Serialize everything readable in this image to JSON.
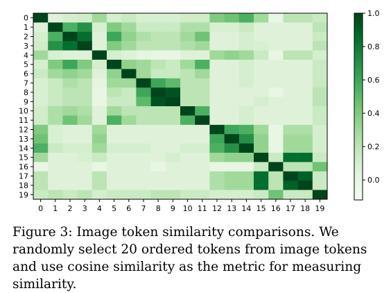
{
  "chart_data": {
    "type": "heatmap",
    "title": "",
    "xlabel": "",
    "ylabel": "",
    "x_ticks": [
      "0",
      "1",
      "2",
      "3",
      "4",
      "5",
      "6",
      "7",
      "8",
      "9",
      "10",
      "11",
      "12",
      "13",
      "14",
      "15",
      "16",
      "17",
      "18",
      "19"
    ],
    "y_ticks": [
      "0",
      "1",
      "2",
      "3",
      "4",
      "5",
      "6",
      "7",
      "8",
      "9",
      "10",
      "11",
      "12",
      "13",
      "14",
      "15",
      "16",
      "17",
      "18",
      "19"
    ],
    "colormap": "Greens",
    "colorbar": {
      "min": -0.12,
      "max": 1.0,
      "ticks": [
        0.0,
        0.2,
        0.4,
        0.6,
        0.8,
        1.0
      ],
      "tick_labels": [
        "0.0",
        "0.2",
        "0.4",
        "0.6",
        "0.8",
        "1.0"
      ]
    },
    "values": [
      [
        1.0,
        0.05,
        0.1,
        0.12,
        0.3,
        0.1,
        0.15,
        0.08,
        0.08,
        0.08,
        0.12,
        0.12,
        0.4,
        0.45,
        0.55,
        0.3,
        0.0,
        0.2,
        0.2,
        0.15
      ],
      [
        0.05,
        1.0,
        0.55,
        0.7,
        0.08,
        0.4,
        0.3,
        0.15,
        0.15,
        0.15,
        0.25,
        0.25,
        0.08,
        0.08,
        0.15,
        0.05,
        0.05,
        0.05,
        0.05,
        0.2
      ],
      [
        0.1,
        0.55,
        1.0,
        0.85,
        0.05,
        0.6,
        0.35,
        0.25,
        0.2,
        0.2,
        0.3,
        0.45,
        0.05,
        0.05,
        0.1,
        0.05,
        0.05,
        0.05,
        0.05,
        0.15
      ],
      [
        0.12,
        0.7,
        0.85,
        1.0,
        0.05,
        0.4,
        0.3,
        0.2,
        0.2,
        0.2,
        0.25,
        0.3,
        0.05,
        0.05,
        0.1,
        0.08,
        0.05,
        0.05,
        0.05,
        0.2
      ],
      [
        0.3,
        0.08,
        0.05,
        0.05,
        1.0,
        0.1,
        0.05,
        0.02,
        0.0,
        0.0,
        0.05,
        0.05,
        0.3,
        0.35,
        0.3,
        0.15,
        0.0,
        0.2,
        0.2,
        0.1
      ],
      [
        0.1,
        0.4,
        0.6,
        0.4,
        0.1,
        1.0,
        0.35,
        0.3,
        0.2,
        0.15,
        0.3,
        0.55,
        0.05,
        0.05,
        0.1,
        0.05,
        0.05,
        0.05,
        0.05,
        0.15
      ],
      [
        0.15,
        0.3,
        0.35,
        0.3,
        0.05,
        0.35,
        1.0,
        0.3,
        0.15,
        0.15,
        0.2,
        0.3,
        0.05,
        0.05,
        0.1,
        0.05,
        0.05,
        0.05,
        0.05,
        0.15
      ],
      [
        0.08,
        0.15,
        0.25,
        0.2,
        0.02,
        0.3,
        0.3,
        1.0,
        0.6,
        0.5,
        0.2,
        0.2,
        0.05,
        0.05,
        0.1,
        0.05,
        0.05,
        0.05,
        0.05,
        0.15
      ],
      [
        0.08,
        0.15,
        0.2,
        0.2,
        0.0,
        0.2,
        0.15,
        0.6,
        1.0,
        0.95,
        0.2,
        0.2,
        0.05,
        0.05,
        0.05,
        0.05,
        0.0,
        0.05,
        0.05,
        0.2
      ],
      [
        0.08,
        0.15,
        0.2,
        0.2,
        0.0,
        0.15,
        0.15,
        0.5,
        0.95,
        1.0,
        0.2,
        0.2,
        0.05,
        0.05,
        0.05,
        0.1,
        0.05,
        0.05,
        0.05,
        0.2
      ],
      [
        0.12,
        0.25,
        0.3,
        0.25,
        0.05,
        0.3,
        0.2,
        0.2,
        0.2,
        0.2,
        1.0,
        0.55,
        0.05,
        0.05,
        0.1,
        0.05,
        0.05,
        0.05,
        0.05,
        0.15
      ],
      [
        0.12,
        0.25,
        0.45,
        0.3,
        0.05,
        0.55,
        0.3,
        0.2,
        0.2,
        0.2,
        0.55,
        1.0,
        0.05,
        0.05,
        0.1,
        0.05,
        0.05,
        0.05,
        0.05,
        0.15
      ],
      [
        0.4,
        0.08,
        0.05,
        0.05,
        0.3,
        0.05,
        0.05,
        0.05,
        0.05,
        0.05,
        0.05,
        0.05,
        1.0,
        0.6,
        0.55,
        0.3,
        0.0,
        0.25,
        0.25,
        0.1
      ],
      [
        0.45,
        0.08,
        0.05,
        0.05,
        0.35,
        0.05,
        0.05,
        0.05,
        0.05,
        0.05,
        0.05,
        0.05,
        0.6,
        1.0,
        0.7,
        0.35,
        0.0,
        0.3,
        0.3,
        0.1
      ],
      [
        0.55,
        0.15,
        0.1,
        0.1,
        0.3,
        0.1,
        0.1,
        0.1,
        0.05,
        0.05,
        0.1,
        0.1,
        0.55,
        0.7,
        1.0,
        0.35,
        0.0,
        0.3,
        0.3,
        0.1
      ],
      [
        0.3,
        0.05,
        0.05,
        0.08,
        0.15,
        0.05,
        0.05,
        0.05,
        0.05,
        0.1,
        0.05,
        0.05,
        0.3,
        0.35,
        0.35,
        1.0,
        0.15,
        0.85,
        0.85,
        0.15
      ],
      [
        0.0,
        0.05,
        0.05,
        0.05,
        0.0,
        0.05,
        0.05,
        0.05,
        0.0,
        0.05,
        0.05,
        0.05,
        0.0,
        0.0,
        0.0,
        0.15,
        1.0,
        0.2,
        0.2,
        0.45
      ],
      [
        0.2,
        0.05,
        0.05,
        0.05,
        0.2,
        0.05,
        0.05,
        0.05,
        0.05,
        0.05,
        0.05,
        0.05,
        0.25,
        0.3,
        0.3,
        0.85,
        0.2,
        1.0,
        0.9,
        0.15
      ],
      [
        0.2,
        0.05,
        0.05,
        0.05,
        0.2,
        0.05,
        0.05,
        0.05,
        0.05,
        0.05,
        0.05,
        0.05,
        0.25,
        0.3,
        0.3,
        0.85,
        0.2,
        0.9,
        1.0,
        0.15
      ],
      [
        0.15,
        0.2,
        0.15,
        0.2,
        0.1,
        0.15,
        0.15,
        0.15,
        0.2,
        0.2,
        0.15,
        0.15,
        0.1,
        0.1,
        0.1,
        0.15,
        0.45,
        0.15,
        0.15,
        1.0
      ]
    ]
  },
  "caption": "Figure 3: Image token similarity comparisons. We randomly select 20 ordered tokens from image tokens and use cosine similarity as the metric for measuring similarity."
}
